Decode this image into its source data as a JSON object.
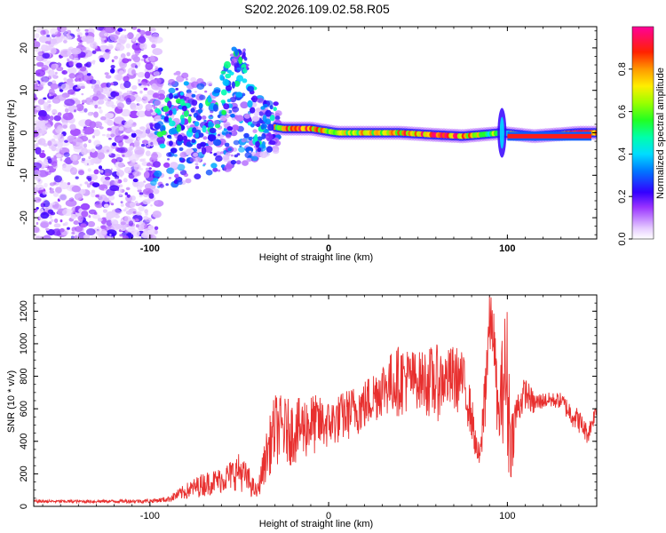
{
  "title": "S202.2026.109.02.58.R05",
  "chart_data": [
    {
      "type": "heatmap",
      "xlabel": "Height of straight line (km)",
      "ylabel": "Frequency (Hz)",
      "xlim": [
        -165,
        150
      ],
      "ylim": [
        -25,
        25
      ],
      "xticks": [
        -100,
        0,
        100
      ],
      "yticks": [
        -20,
        -10,
        0,
        10,
        20
      ],
      "colorbar": {
        "label": "Normalized spectral amplitude",
        "range": [
          0,
          1
        ],
        "ticks": [
          0.0,
          0.2,
          0.4,
          0.6,
          0.8
        ],
        "colormap": [
          "#ffffff",
          "#d9b3ff",
          "#9933ff",
          "#3300ff",
          "#0066ff",
          "#00ccff",
          "#00ffcc",
          "#00ff33",
          "#66ff00",
          "#ccff00",
          "#ffcc00",
          "#ff6600",
          "#ff0033",
          "#ff0099"
        ]
      },
      "description_ridge": [
        {
          "x": -95,
          "f": 0,
          "amp": 0.35
        },
        {
          "x": -85,
          "f": 4,
          "amp": 0.45
        },
        {
          "x": -70,
          "f": 1,
          "amp": 0.4
        },
        {
          "x": -50,
          "f": 17,
          "amp": 0.3
        },
        {
          "x": -40,
          "f": 2,
          "amp": 0.45
        },
        {
          "x": -25,
          "f": 1,
          "amp": 0.75
        },
        {
          "x": -10,
          "f": 1,
          "amp": 0.8
        },
        {
          "x": 5,
          "f": 0,
          "amp": 0.6
        },
        {
          "x": 40,
          "f": 0,
          "amp": 0.75
        },
        {
          "x": 60,
          "f": -0.5,
          "amp": 0.85
        },
        {
          "x": 75,
          "f": -0.8,
          "amp": 0.8
        },
        {
          "x": 97,
          "f": 0,
          "amp": 0.45
        },
        {
          "x": 115,
          "f": -0.8,
          "amp": 0.95
        },
        {
          "x": 140,
          "f": 0,
          "amp": 0.85
        }
      ]
    },
    {
      "type": "line",
      "xlabel": "Height of straight line (km)",
      "ylabel": "SNR (10 * v/v)",
      "xlim": [
        -165,
        150
      ],
      "ylim": [
        0,
        1300
      ],
      "xticks": [
        -100,
        0,
        100
      ],
      "yticks": [
        0,
        200,
        400,
        600,
        800,
        1000,
        1200
      ],
      "series": [
        {
          "name": "SNR",
          "color": "#e8302f",
          "envelope": [
            [
              -165,
              20,
              40
            ],
            [
              -130,
              20,
              40
            ],
            [
              -100,
              20,
              45
            ],
            [
              -90,
              25,
              60
            ],
            [
              -80,
              40,
              140
            ],
            [
              -70,
              60,
              210
            ],
            [
              -60,
              80,
              240
            ],
            [
              -50,
              100,
              330
            ],
            [
              -45,
              60,
              250
            ],
            [
              -40,
              40,
              120
            ],
            [
              -35,
              150,
              450
            ],
            [
              -30,
              250,
              700
            ],
            [
              -20,
              250,
              650
            ],
            [
              -10,
              300,
              700
            ],
            [
              0,
              350,
              650
            ],
            [
              10,
              400,
              720
            ],
            [
              20,
              450,
              780
            ],
            [
              30,
              550,
              900
            ],
            [
              40,
              550,
              1000
            ],
            [
              50,
              600,
              950
            ],
            [
              60,
              500,
              1000
            ],
            [
              65,
              600,
              950
            ],
            [
              70,
              550,
              1000
            ],
            [
              75,
              600,
              950
            ],
            [
              80,
              400,
              700
            ],
            [
              83,
              250,
              400
            ],
            [
              85,
              200,
              400
            ],
            [
              88,
              500,
              1100
            ],
            [
              90,
              900,
              1300
            ],
            [
              92,
              900,
              1300
            ],
            [
              95,
              300,
              700
            ],
            [
              98,
              400,
              1200
            ],
            [
              100,
              150,
              1250
            ],
            [
              102,
              150,
              600
            ],
            [
              105,
              450,
              700
            ],
            [
              110,
              600,
              800
            ],
            [
              115,
              550,
              700
            ],
            [
              120,
              600,
              700
            ],
            [
              130,
              600,
              700
            ],
            [
              135,
              500,
              650
            ],
            [
              140,
              450,
              600
            ],
            [
              145,
              380,
              500
            ],
            [
              150,
              550,
              650
            ]
          ]
        }
      ]
    }
  ]
}
